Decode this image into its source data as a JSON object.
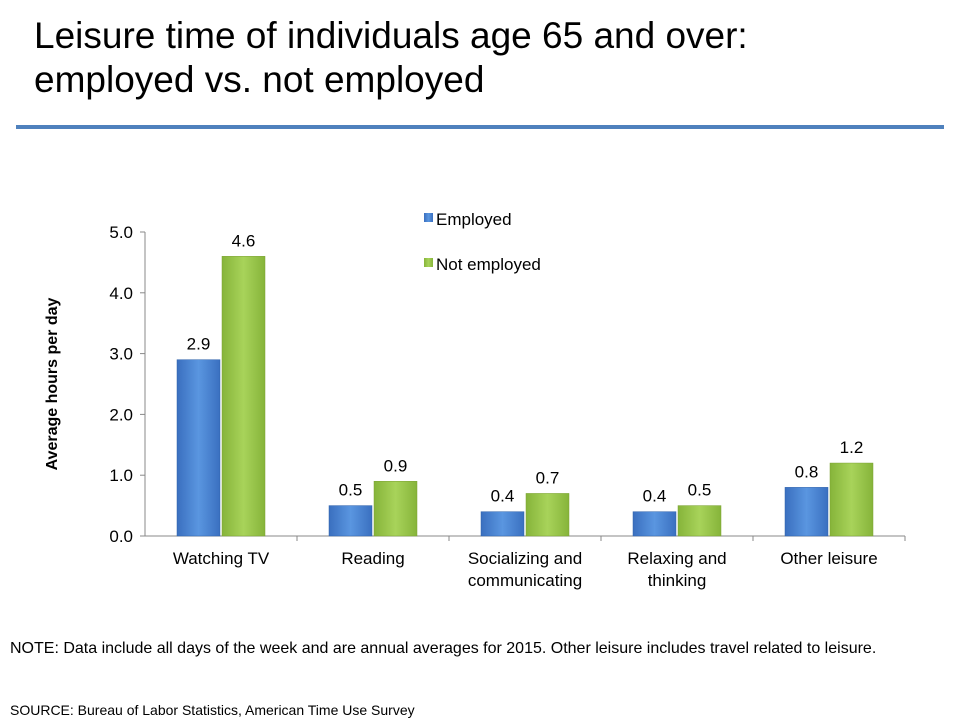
{
  "title_line1": "Leisure time of individuals age 65 and over:",
  "title_line2": "employed vs. not employed",
  "note": "NOTE: Data include all days of the week and are annual averages for 2015. Other leisure includes travel related to leisure.",
  "source": "SOURCE: Bureau of Labor Statistics, American Time Use Survey",
  "colors": {
    "employed": "#4a86d6",
    "not_employed": "#9bc94a",
    "rule": "#4f81bd"
  },
  "chart_data": {
    "type": "bar",
    "categories": [
      [
        "Watching TV"
      ],
      [
        "Reading"
      ],
      [
        "Socializing and",
        "communicating"
      ],
      [
        "Relaxing and",
        "thinking"
      ],
      [
        "Other leisure"
      ]
    ],
    "series": [
      {
        "name": "Employed",
        "values": [
          2.9,
          0.5,
          0.4,
          0.4,
          0.8
        ],
        "labels": [
          "2.9",
          "0.5",
          "0.4",
          "0.4",
          "0.8"
        ]
      },
      {
        "name": "Not employed",
        "values": [
          4.6,
          0.9,
          0.7,
          0.5,
          1.2
        ],
        "labels": [
          "4.6",
          "0.9",
          "0.7",
          "0.5",
          "1.2"
        ]
      }
    ],
    "ylabel": "Average hours per day",
    "xlabel": "",
    "ylim": [
      0,
      5
    ],
    "yticks": [
      "0.0",
      "1.0",
      "2.0",
      "3.0",
      "4.0",
      "5.0"
    ],
    "legend": "top-center",
    "grid": false
  }
}
